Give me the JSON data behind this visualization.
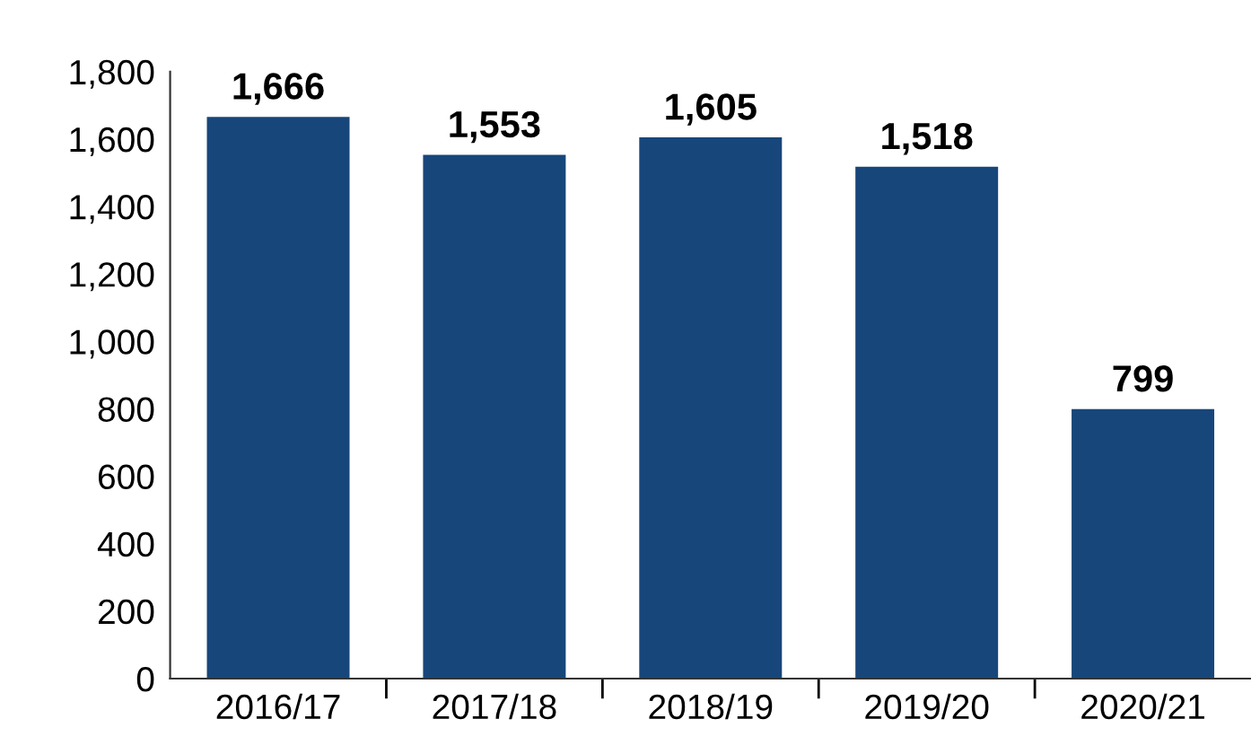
{
  "chart_data": {
    "type": "bar",
    "categories": [
      "2016/17",
      "2017/18",
      "2018/19",
      "2019/20",
      "2020/21"
    ],
    "values": [
      1666,
      1553,
      1605,
      1518,
      799
    ],
    "value_labels": [
      "1,666",
      "1,553",
      "1,605",
      "1,518",
      "799"
    ],
    "color": "#17467a",
    "ylim": [
      0,
      1800
    ],
    "yticks": [
      0,
      200,
      400,
      600,
      800,
      {
        "value": 1000,
        "label": "1,000"
      },
      {
        "value": 1200,
        "label": "1,200"
      },
      {
        "value": 1400,
        "label": "1,400"
      },
      {
        "value": 1600,
        "label": "1,600"
      },
      {
        "value": 1800,
        "label": "1,800"
      }
    ],
    "grid": false,
    "legend": false
  }
}
